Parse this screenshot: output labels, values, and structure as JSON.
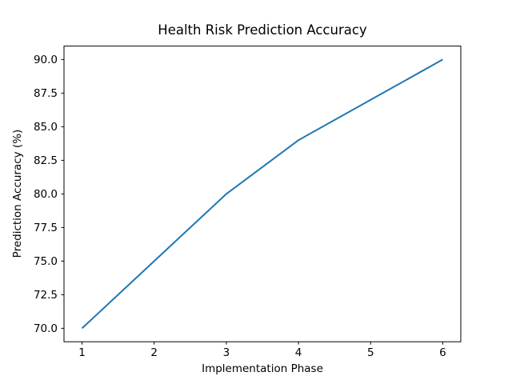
{
  "window": {
    "background": "#ffffff"
  },
  "chart_data": {
    "type": "line",
    "title": "Health Risk Prediction Accuracy",
    "xlabel": "Implementation Phase",
    "ylabel": "Prediction Accuracy (%)",
    "x": [
      1,
      2,
      3,
      4,
      5,
      6
    ],
    "series": [
      {
        "name": "Prediction Accuracy",
        "values": [
          70,
          75,
          80,
          84,
          87,
          90
        ],
        "color": "#1f77b4",
        "line_width": 2
      }
    ],
    "xlim": [
      0.75,
      6.25
    ],
    "ylim": [
      69,
      91
    ],
    "x_ticks": [
      1,
      2,
      3,
      4,
      5,
      6
    ],
    "x_tick_labels": [
      "1",
      "2",
      "3",
      "4",
      "5",
      "6"
    ],
    "y_ticks": [
      70,
      72.5,
      75,
      77.5,
      80,
      82.5,
      85,
      87.5,
      90
    ],
    "y_tick_labels": [
      "70.0",
      "72.5",
      "75.0",
      "77.5",
      "80.0",
      "82.5",
      "85.0",
      "87.5",
      "90.0"
    ],
    "grid": false,
    "legend_position": "none",
    "axis_color": "#000000",
    "text_color": "#000000",
    "background_color": "#ffffff"
  }
}
